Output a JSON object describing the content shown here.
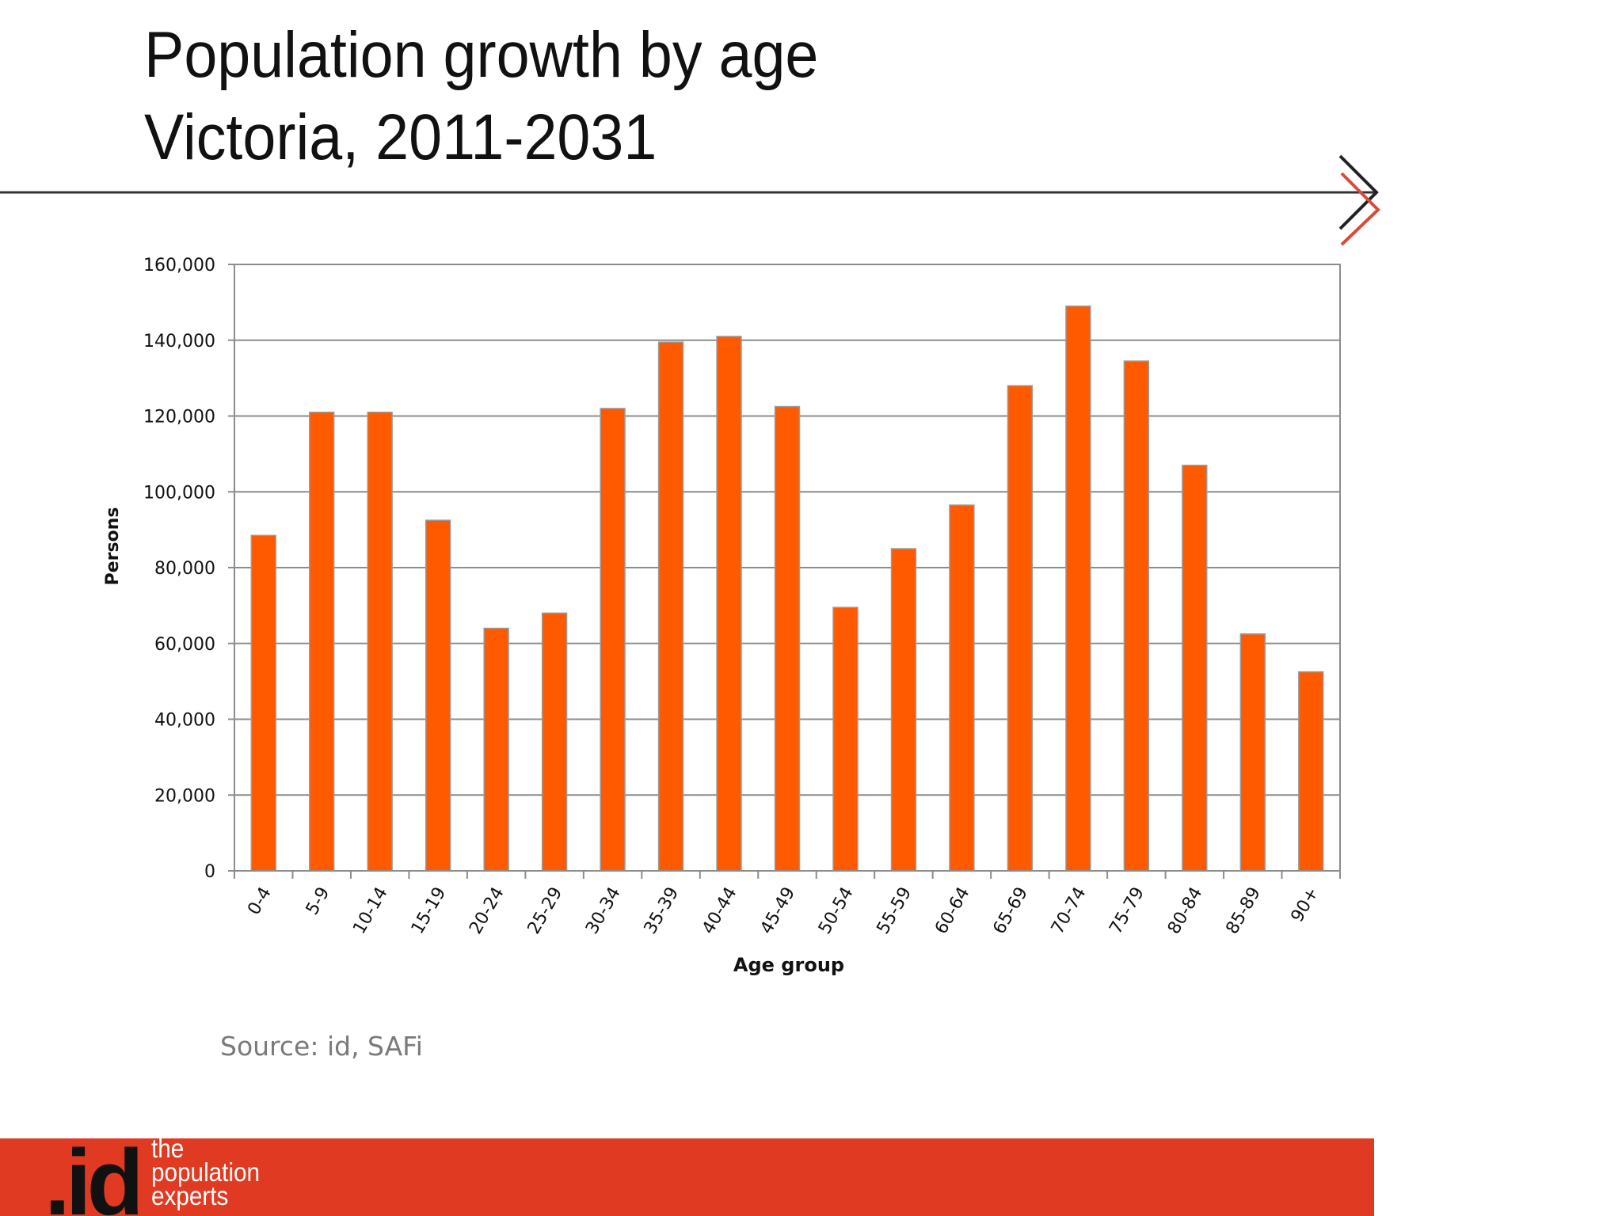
{
  "slide": {
    "title_line1": "Population growth by age",
    "title_line2": "Victoria, 2011-2031",
    "source": "Source: id, SAFi",
    "accent_color": "#ff5a00",
    "footer_color": "#e03b22"
  },
  "logo": {
    "mark": ".id",
    "tagline_line1": "the",
    "tagline_line2": "population",
    "tagline_line3": "experts"
  },
  "chart_data": {
    "type": "bar",
    "title": "",
    "xlabel": "Age group",
    "ylabel": "Persons",
    "ylim": [
      0,
      160000
    ],
    "yticks": [
      0,
      20000,
      40000,
      60000,
      80000,
      100000,
      120000,
      140000,
      160000
    ],
    "ytick_labels": [
      "0",
      "20,000",
      "40,000",
      "60,000",
      "80,000",
      "100,000",
      "120,000",
      "140,000",
      "160,000"
    ],
    "grid": true,
    "legend": "none",
    "bar_color": "#ff5a00",
    "categories": [
      "0-4",
      "5-9",
      "10-14",
      "15-19",
      "20-24",
      "25-29",
      "30-34",
      "35-39",
      "40-44",
      "45-49",
      "50-54",
      "55-59",
      "60-64",
      "65-69",
      "70-74",
      "75-79",
      "80-84",
      "85-89",
      "90+"
    ],
    "values": [
      88500,
      121000,
      121000,
      92500,
      64000,
      68000,
      122000,
      139500,
      141000,
      122500,
      69500,
      85000,
      96500,
      128000,
      149000,
      134500,
      107000,
      62500,
      52500
    ]
  }
}
